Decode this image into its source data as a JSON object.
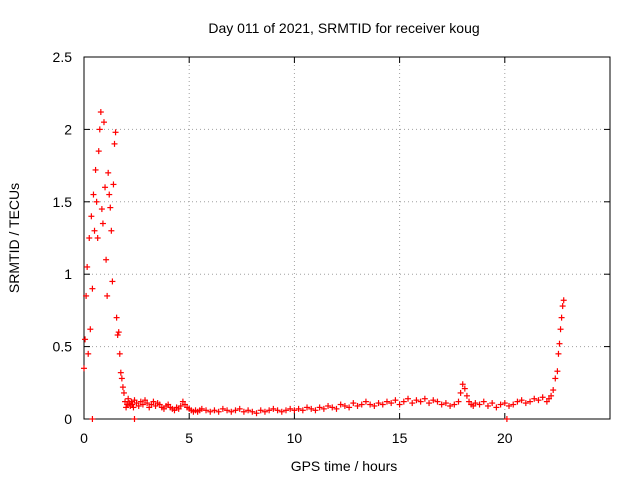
{
  "chart_data": {
    "type": "scatter",
    "title": "Day 011 of 2021, SRMTID for receiver koug",
    "xlabel": "GPS time / hours",
    "ylabel": "SRMTID / TECUs",
    "xlim": [
      0,
      25
    ],
    "ylim": [
      0,
      2.5
    ],
    "xticks": [
      0,
      5,
      10,
      15,
      20
    ],
    "yticks": [
      0,
      0.5,
      1,
      1.5,
      2,
      2.5
    ],
    "xtick_labels": [
      "0",
      "5",
      "10",
      "15",
      "20"
    ],
    "ytick_labels": [
      "0",
      "0.5",
      "1",
      "1.5",
      "2",
      "2.5"
    ],
    "grid": true,
    "marker": "+",
    "color": "#ff0000",
    "series": [
      {
        "name": "SRMTID",
        "x": [
          0.0,
          0.05,
          0.1,
          0.15,
          0.2,
          0.25,
          0.3,
          0.35,
          0.4,
          0.45,
          0.5,
          0.55,
          0.6,
          0.65,
          0.7,
          0.75,
          0.8,
          0.85,
          0.9,
          0.95,
          1.0,
          1.05,
          1.1,
          1.15,
          1.2,
          1.25,
          1.3,
          1.35,
          1.4,
          1.45,
          1.5,
          1.55,
          1.6,
          1.65,
          1.7,
          1.75,
          1.8,
          1.85,
          1.9,
          1.95,
          2.0,
          2.05,
          2.1,
          2.15,
          2.2,
          2.25,
          2.3,
          2.35,
          2.4,
          2.5,
          2.6,
          2.7,
          2.8,
          2.9,
          3.0,
          3.1,
          3.2,
          3.3,
          3.4,
          3.5,
          3.6,
          3.7,
          3.8,
          3.9,
          4.0,
          4.1,
          4.2,
          4.3,
          4.4,
          4.5,
          4.6,
          4.7,
          4.8,
          4.9,
          5.0,
          5.1,
          5.2,
          5.3,
          5.4,
          5.5,
          5.6,
          5.8,
          6.0,
          6.2,
          6.4,
          6.6,
          6.8,
          7.0,
          7.2,
          7.4,
          7.6,
          7.8,
          8.0,
          8.2,
          8.4,
          8.6,
          8.8,
          9.0,
          9.2,
          9.4,
          9.6,
          9.8,
          10.0,
          10.2,
          10.4,
          10.6,
          10.8,
          11.0,
          11.2,
          11.4,
          11.6,
          11.8,
          12.0,
          12.2,
          12.4,
          12.6,
          12.8,
          13.0,
          13.2,
          13.4,
          13.6,
          13.8,
          14.0,
          14.2,
          14.4,
          14.6,
          14.8,
          15.0,
          15.2,
          15.4,
          15.6,
          15.8,
          16.0,
          16.2,
          16.4,
          16.6,
          16.8,
          17.0,
          17.2,
          17.4,
          17.6,
          17.8,
          17.9,
          18.0,
          18.1,
          18.2,
          18.3,
          18.4,
          18.5,
          18.6,
          18.8,
          19.0,
          19.2,
          19.4,
          19.6,
          19.8,
          20.0,
          20.2,
          20.4,
          20.6,
          20.8,
          21.0,
          21.2,
          21.4,
          21.6,
          21.8,
          22.0,
          22.1,
          22.2,
          22.3,
          22.4,
          22.5,
          22.55,
          22.6,
          22.65,
          22.7,
          22.75,
          22.8,
          0.4,
          2.4,
          20.1
        ],
        "y": [
          0.35,
          0.55,
          0.85,
          1.05,
          0.45,
          1.25,
          0.62,
          1.4,
          0.9,
          1.55,
          1.3,
          1.72,
          1.5,
          1.25,
          1.85,
          2.0,
          2.12,
          1.45,
          1.35,
          2.05,
          1.6,
          1.1,
          0.85,
          1.7,
          1.55,
          1.46,
          1.3,
          0.95,
          1.62,
          1.9,
          1.98,
          0.7,
          0.58,
          0.6,
          0.45,
          0.32,
          0.28,
          0.22,
          0.18,
          0.12,
          0.08,
          0.1,
          0.14,
          0.11,
          0.09,
          0.12,
          0.1,
          0.08,
          0.13,
          0.11,
          0.09,
          0.12,
          0.1,
          0.13,
          0.11,
          0.08,
          0.1,
          0.12,
          0.09,
          0.11,
          0.1,
          0.08,
          0.07,
          0.09,
          0.1,
          0.08,
          0.07,
          0.06,
          0.08,
          0.07,
          0.09,
          0.12,
          0.1,
          0.08,
          0.07,
          0.06,
          0.05,
          0.06,
          0.05,
          0.06,
          0.07,
          0.06,
          0.05,
          0.06,
          0.05,
          0.07,
          0.06,
          0.05,
          0.06,
          0.07,
          0.05,
          0.06,
          0.05,
          0.04,
          0.06,
          0.05,
          0.06,
          0.07,
          0.06,
          0.05,
          0.06,
          0.07,
          0.06,
          0.07,
          0.06,
          0.08,
          0.07,
          0.06,
          0.08,
          0.07,
          0.09,
          0.08,
          0.07,
          0.1,
          0.09,
          0.08,
          0.11,
          0.09,
          0.1,
          0.12,
          0.1,
          0.09,
          0.11,
          0.1,
          0.12,
          0.11,
          0.13,
          0.1,
          0.12,
          0.14,
          0.11,
          0.13,
          0.12,
          0.14,
          0.11,
          0.13,
          0.12,
          0.1,
          0.11,
          0.09,
          0.1,
          0.12,
          0.18,
          0.24,
          0.21,
          0.16,
          0.12,
          0.1,
          0.09,
          0.11,
          0.1,
          0.12,
          0.09,
          0.11,
          0.08,
          0.1,
          0.11,
          0.09,
          0.1,
          0.12,
          0.13,
          0.11,
          0.12,
          0.14,
          0.13,
          0.15,
          0.12,
          0.14,
          0.16,
          0.2,
          0.28,
          0.33,
          0.45,
          0.52,
          0.62,
          0.7,
          0.78,
          0.82,
          0.0,
          0.0,
          0.0
        ]
      }
    ]
  }
}
